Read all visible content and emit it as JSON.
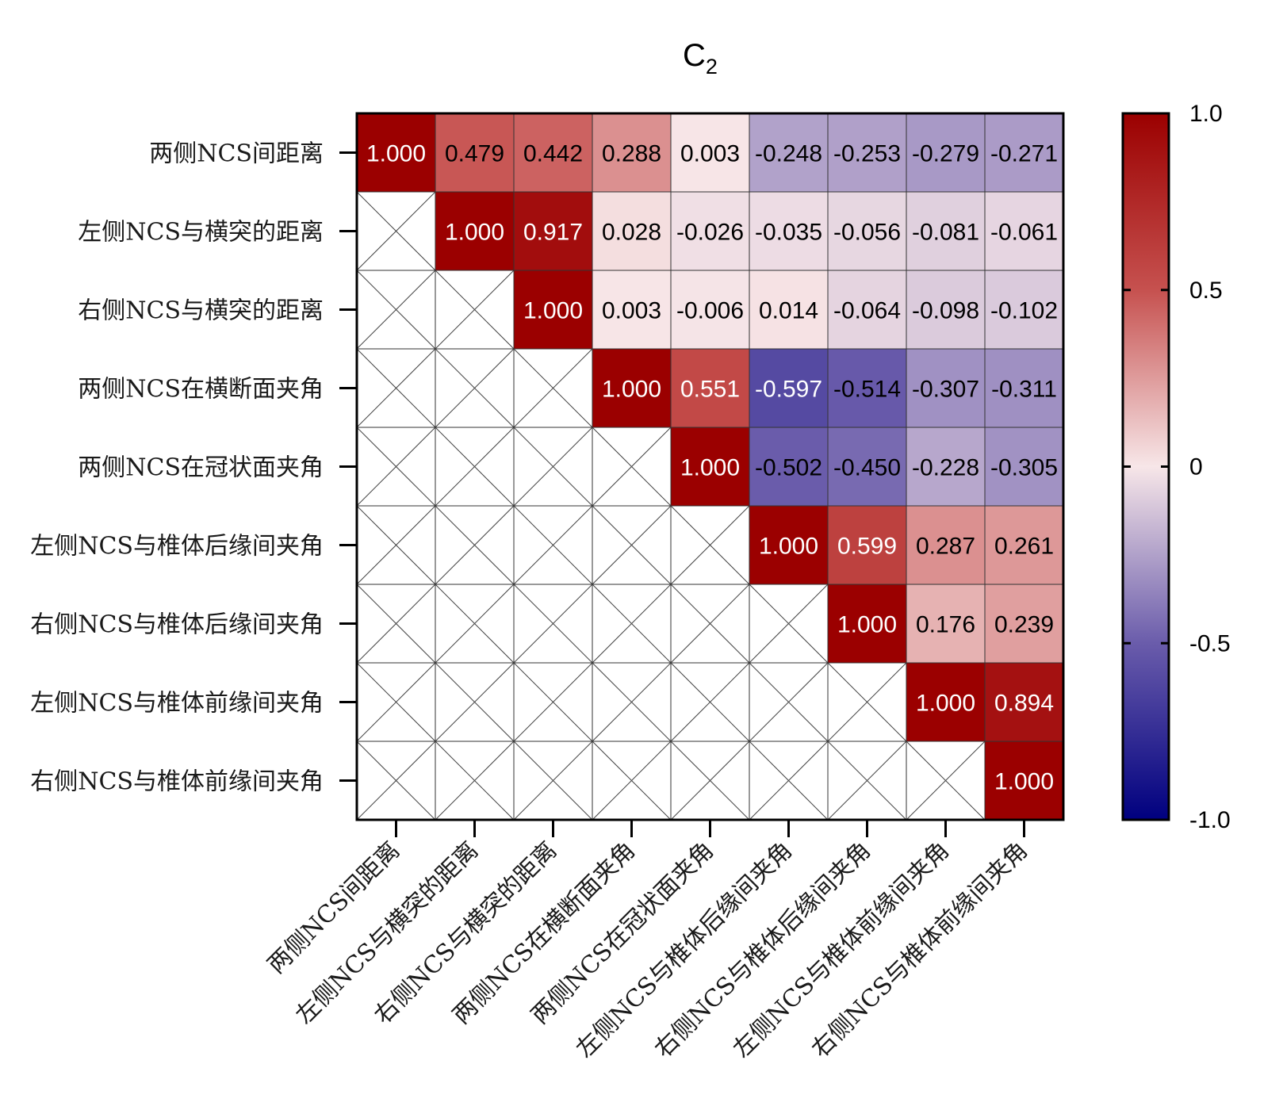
{
  "chart_data": {
    "type": "heatmap",
    "title": "C",
    "title_subscript": "2",
    "variables": [
      "两侧NCS间距离",
      "左侧NCS与横突的距离",
      "右侧NCS与横突的距离",
      "两侧NCS在横断面夹角",
      "两侧NCS在冠状面夹角",
      "左侧NCS与椎体后缘间夹角",
      "右侧NCS与椎体后缘间夹角",
      "左侧NCS与椎体前缘间夹角",
      "右侧NCS与椎体前缘间夹角"
    ],
    "matrix": [
      [
        1.0,
        0.479,
        0.442,
        0.288,
        0.003,
        -0.248,
        -0.253,
        -0.279,
        -0.271
      ],
      [
        null,
        1.0,
        0.917,
        0.028,
        -0.026,
        -0.035,
        -0.056,
        -0.081,
        -0.061
      ],
      [
        null,
        null,
        1.0,
        0.003,
        -0.006,
        0.014,
        -0.064,
        -0.098,
        -0.102
      ],
      [
        null,
        null,
        null,
        1.0,
        0.551,
        -0.597,
        -0.514,
        -0.307,
        -0.311
      ],
      [
        null,
        null,
        null,
        null,
        1.0,
        -0.502,
        -0.45,
        -0.228,
        -0.305
      ],
      [
        null,
        null,
        null,
        null,
        null,
        1.0,
        0.599,
        0.287,
        0.261
      ],
      [
        null,
        null,
        null,
        null,
        null,
        null,
        1.0,
        0.176,
        0.239
      ],
      [
        null,
        null,
        null,
        null,
        null,
        null,
        null,
        1.0,
        0.894
      ],
      [
        null,
        null,
        null,
        null,
        null,
        null,
        null,
        null,
        1.0
      ]
    ],
    "value_format_decimals": 3,
    "lower_triangle": "crossed-out blank cells",
    "colorbar": {
      "range": [
        -1.0,
        1.0
      ],
      "ticks": [
        1.0,
        0.5,
        0,
        -0.5,
        -1.0
      ],
      "tick_labels": [
        "1.0",
        "0.5",
        "0",
        "-0.5",
        "-1.0"
      ],
      "colors": {
        "max": "#9b0000",
        "high": "#c6514f",
        "mid": "#f7e6e8",
        "low": "#6a5cab",
        "min": "#00007f"
      }
    }
  }
}
